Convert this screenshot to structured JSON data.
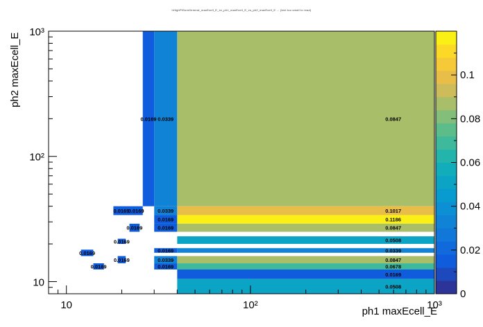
{
  "chart_data": {
    "type": "heatmap",
    "title": "hHighPtSumGeneral_maxEcell_E_xx_ph1_maxEcell_E_vs_ph2_maxEcell_E ... (text too small to read)",
    "xlabel": "ph1 maxEcell_E",
    "ylabel": "ph2 maxEcell_E",
    "x_scale": "log",
    "y_scale": "log",
    "xlim": [
      8,
      1000
    ],
    "ylim": [
      8,
      1000
    ],
    "x_ticks": [
      "10",
      "10²",
      "10³"
    ],
    "y_ticks": [
      "10",
      "10²",
      "10³"
    ],
    "z_range": [
      0,
      0.12
    ],
    "colorbar_ticks": [
      "0",
      "0.02",
      "0.04",
      "0.06",
      "0.08",
      "0.1"
    ],
    "cells": [
      {
        "x": [
          26,
          30
        ],
        "y": [
          40,
          1000
        ],
        "value": 0.0169,
        "label": "0.0169"
      },
      {
        "x": [
          30,
          40
        ],
        "y": [
          40,
          1000
        ],
        "value": 0.0339,
        "label": "0.0339"
      },
      {
        "x": [
          40,
          1000
        ],
        "y": [
          40,
          1000
        ],
        "value": 0.0847,
        "label": "0.0847"
      },
      {
        "x": [
          18,
          22
        ],
        "y": [
          34,
          40
        ],
        "value": 0.0169,
        "label": "0.0169"
      },
      {
        "x": [
          22,
          26
        ],
        "y": [
          34,
          40
        ],
        "value": 0.0169,
        "label": "0.0169"
      },
      {
        "x": [
          30,
          40
        ],
        "y": [
          34,
          40
        ],
        "value": 0.0339,
        "label": "0.0339"
      },
      {
        "x": [
          40,
          1000
        ],
        "y": [
          34,
          40
        ],
        "value": 0.1017,
        "label": "0.1017"
      },
      {
        "x": [
          30,
          40
        ],
        "y": [
          29,
          34
        ],
        "value": 0.0169,
        "label": "0.0169"
      },
      {
        "x": [
          40,
          1000
        ],
        "y": [
          29,
          34
        ],
        "value": 0.1186,
        "label": "0.1186"
      },
      {
        "x": [
          22,
          25
        ],
        "y": [
          25,
          29
        ],
        "value": 0.0169,
        "label": "0.0169"
      },
      {
        "x": [
          30,
          40
        ],
        "y": [
          25,
          29
        ],
        "value": 0.0169,
        "label": "0.0169"
      },
      {
        "x": [
          40,
          1000
        ],
        "y": [
          25,
          29
        ],
        "value": 0.0847,
        "label": "0.0847"
      },
      {
        "x": [
          19,
          21
        ],
        "y": [
          20,
          22
        ],
        "value": 0.0169,
        "label": "0.0169"
      },
      {
        "x": [
          40,
          1000
        ],
        "y": [
          20,
          23
        ],
        "value": 0.0508,
        "label": "0.0508"
      },
      {
        "x": [
          12,
          14
        ],
        "y": [
          16,
          18
        ],
        "value": 0.0169,
        "label": "0.0169"
      },
      {
        "x": [
          30,
          40
        ],
        "y": [
          17,
          18.5
        ],
        "value": 0.0169,
        "label": "0.0169"
      },
      {
        "x": [
          40,
          1000
        ],
        "y": [
          17,
          18.5
        ],
        "value": 0.0339,
        "label": "0.0339"
      },
      {
        "x": [
          19,
          21
        ],
        "y": [
          14,
          16
        ],
        "value": 0.0169,
        "label": "0.0169"
      },
      {
        "x": [
          30,
          40
        ],
        "y": [
          14,
          16
        ],
        "value": 0.0339,
        "label": "0.0339"
      },
      {
        "x": [
          40,
          1000
        ],
        "y": [
          14,
          16
        ],
        "value": 0.0847,
        "label": "0.0847"
      },
      {
        "x": [
          14,
          16
        ],
        "y": [
          12.5,
          14
        ],
        "value": 0.0169,
        "label": "0.0169"
      },
      {
        "x": [
          30,
          40
        ],
        "y": [
          12.5,
          14
        ],
        "value": 0.0169,
        "label": "0.0169"
      },
      {
        "x": [
          40,
          1000
        ],
        "y": [
          12.5,
          14
        ],
        "value": 0.0678,
        "label": "0.0678"
      },
      {
        "x": [
          40,
          1000
        ],
        "y": [
          10.5,
          12.5
        ],
        "value": 0.0169,
        "label": "0.0169"
      },
      {
        "x": [
          40,
          1000
        ],
        "y": [
          8,
          10.5
        ],
        "value": 0.0508,
        "label": "0.0508"
      }
    ]
  }
}
